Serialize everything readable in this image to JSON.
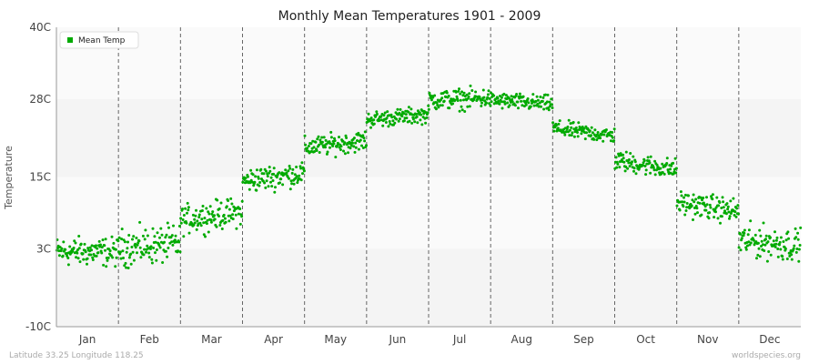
{
  "chart_data": {
    "type": "scatter",
    "title": "Monthly Mean Temperatures 1901 - 2009",
    "ylabel": "Temperature",
    "ylim": [
      -10,
      40
    ],
    "y_ticks": [
      {
        "value": -10,
        "label": "-10C"
      },
      {
        "value": 3,
        "label": "3C"
      },
      {
        "value": 15,
        "label": "15C"
      },
      {
        "value": 28,
        "label": "28C"
      },
      {
        "value": 40,
        "label": "40C"
      }
    ],
    "categories": [
      "Jan",
      "Feb",
      "Mar",
      "Apr",
      "May",
      "Jun",
      "Jul",
      "Aug",
      "Sep",
      "Oct",
      "Nov",
      "Dec"
    ],
    "years": [
      1901,
      2009
    ],
    "series": [
      {
        "name": "Mean Temp",
        "color": "#00aa00",
        "monthly_mean": [
          2.5,
          3.5,
          8.5,
          15.0,
          20.5,
          25.0,
          28.0,
          27.5,
          22.5,
          17.0,
          10.0,
          4.0
        ],
        "monthly_spread": [
          3.5,
          4.5,
          3.5,
          3.0,
          2.5,
          2.0,
          2.5,
          2.0,
          2.0,
          2.5,
          3.0,
          4.0
        ]
      }
    ],
    "legend": "top-left",
    "grid": true
  },
  "footer": {
    "location": "Latitude 33.25 Longitude 118.25",
    "source": "worldspecies.org"
  }
}
